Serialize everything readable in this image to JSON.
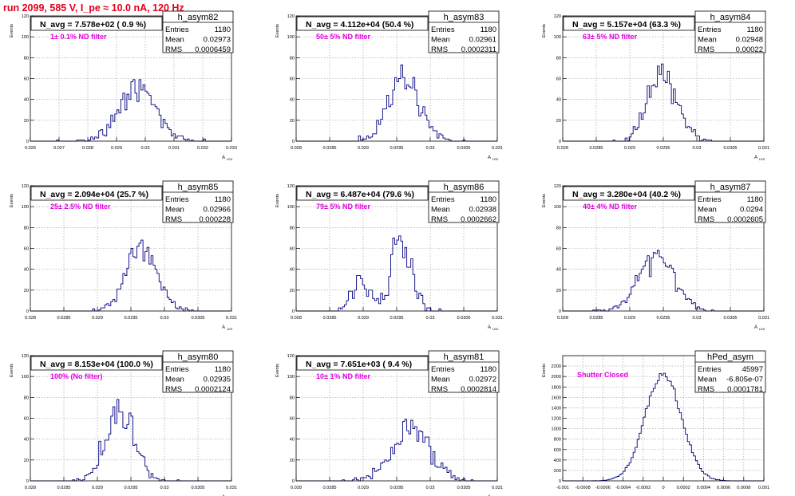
{
  "header": {
    "run_title": "run 2099,   585 V, I_pe ≈ 10.0 nA, 120 Hz"
  },
  "colors": {
    "title": "#e0001b",
    "note": "#e000e0",
    "histogram": "#000080",
    "grid": "#9a9a9a"
  },
  "chart_data": [
    {
      "type": "histogram",
      "name": "h_asym82",
      "title": "N_avg = 7.578e+02 ( 0.9 %)",
      "annotation": "1± 0.1% ND filter",
      "stats": {
        "Entries": "1180",
        "Mean": "0.02973",
        "RMS": "0.0006459"
      },
      "ylabel": "Events",
      "xlabel": "A_{LED}",
      "xlim": [
        0.026,
        0.033
      ],
      "ylim": [
        0,
        120
      ],
      "xticks": [
        "0.026",
        "0.027",
        "0.028",
        "0.029",
        "0.03",
        "0.031",
        "0.032",
        "0.033"
      ],
      "yticks": [
        "0",
        "20",
        "40",
        "60",
        "80",
        "100",
        "120"
      ],
      "fill_note": "Gaussian 1180 entries; mean 0.02973; rms 0.0006459",
      "xmin": 0.026,
      "xmax": 0.033,
      "bins": 100,
      "mean": 0.02973,
      "rms": 0.0006459,
      "entries": 1180,
      "seed": 82
    },
    {
      "type": "histogram",
      "name": "h_asym83",
      "title": "N_avg = 4.112e+04 (50.4 %)",
      "annotation": "50± 5% ND filter",
      "stats": {
        "Entries": "1180",
        "Mean": "0.02961",
        "RMS": "0.0002311"
      },
      "ylabel": "Events",
      "xlabel": "A_{LED}",
      "xlim": [
        0.028,
        0.031
      ],
      "ylim": [
        0,
        120
      ],
      "xticks": [
        "0.028",
        "0.0285",
        "0.029",
        "0.0295",
        "0.03",
        "0.0305",
        "0.031"
      ],
      "yticks": [
        "0",
        "20",
        "40",
        "60",
        "80",
        "100",
        "120"
      ],
      "xmin": 0.028,
      "xmax": 0.031,
      "bins": 100,
      "mean": 0.02961,
      "rms": 0.0002311,
      "entries": 1180,
      "seed": 83
    },
    {
      "type": "histogram",
      "name": "h_asym84",
      "title": "N_avg = 5.157e+04 (63.3 %)",
      "annotation": "63± 5% ND filter",
      "stats": {
        "Entries": "1180",
        "Mean": "0.02948",
        "RMS": "0.00022"
      },
      "ylabel": "Events",
      "xlabel": "A_{LED}",
      "xlim": [
        0.028,
        0.031
      ],
      "ylim": [
        0,
        120
      ],
      "xticks": [
        "0.028",
        "0.0285",
        "0.029",
        "0.0295",
        "0.03",
        "0.0305",
        "0.031"
      ],
      "yticks": [
        "0",
        "20",
        "40",
        "60",
        "80",
        "100",
        "120"
      ],
      "xmin": 0.028,
      "xmax": 0.031,
      "bins": 100,
      "mean": 0.02948,
      "rms": 0.00022,
      "entries": 1180,
      "seed": 84
    },
    {
      "type": "histogram",
      "name": "h_asym85",
      "title": "N_avg = 2.094e+04 (25.7 %)",
      "annotation": "25± 2.5% ND filter",
      "stats": {
        "Entries": "1180",
        "Mean": "0.02966",
        "RMS": "0.000228"
      },
      "ylabel": "Events",
      "xlabel": "A_{LED}",
      "xlim": [
        0.028,
        0.031
      ],
      "ylim": [
        0,
        120
      ],
      "xticks": [
        "0.028",
        "0.0285",
        "0.029",
        "0.0295",
        "0.03",
        "0.0305",
        "0.031"
      ],
      "yticks": [
        "0",
        "20",
        "40",
        "60",
        "80",
        "100",
        "120"
      ],
      "xmin": 0.028,
      "xmax": 0.031,
      "bins": 100,
      "mean": 0.02966,
      "rms": 0.000228,
      "entries": 1180,
      "seed": 85
    },
    {
      "type": "histogram",
      "name": "h_asym86",
      "title": "N_avg = 6.487e+04 (79.6 %)",
      "annotation": "79± 5% ND filter",
      "stats": {
        "Entries": "1180",
        "Mean": "0.02938",
        "RMS": "0.0002662"
      },
      "ylabel": "Events",
      "xlabel": "A_{LED}",
      "xlim": [
        0.028,
        0.031
      ],
      "ylim": [
        0,
        120
      ],
      "xticks": [
        "0.028",
        "0.0285",
        "0.029",
        "0.0295",
        "0.03",
        "0.0305",
        "0.031"
      ],
      "yticks": [
        "0",
        "20",
        "40",
        "60",
        "80",
        "100",
        "120"
      ],
      "xmin": 0.028,
      "xmax": 0.031,
      "bins": 100,
      "mean": 0.02938,
      "rms": 0.0002662,
      "entries": 1180,
      "seed": 86,
      "bimodal": true
    },
    {
      "type": "histogram",
      "name": "h_asym87",
      "title": "N_avg = 3.280e+04 (40.2 %)",
      "annotation": "40± 4% ND filter",
      "stats": {
        "Entries": "1180",
        "Mean": "0.0294",
        "RMS": "0.0002605"
      },
      "ylabel": "Events",
      "xlabel": "A_{LED}",
      "xlim": [
        0.028,
        0.031
      ],
      "ylim": [
        0,
        120
      ],
      "xticks": [
        "0.028",
        "0.0285",
        "0.029",
        "0.0295",
        "0.03",
        "0.0305",
        "0.031"
      ],
      "yticks": [
        "0",
        "20",
        "40",
        "60",
        "80",
        "100",
        "120"
      ],
      "xmin": 0.028,
      "xmax": 0.031,
      "bins": 100,
      "mean": 0.0294,
      "rms": 0.0002605,
      "entries": 1180,
      "seed": 87
    },
    {
      "type": "histogram",
      "name": "h_asym80",
      "title": "N_avg = 8.153e+04 (100.0 %)",
      "annotation": "100% (No filter)",
      "stats": {
        "Entries": "1180",
        "Mean": "0.02935",
        "RMS": "0.0002124"
      },
      "ylabel": "Events",
      "xlabel": "A_{LED}",
      "xlim": [
        0.028,
        0.031
      ],
      "ylim": [
        0,
        120
      ],
      "xticks": [
        "0.028",
        "0.0285",
        "0.029",
        "0.0295",
        "0.03",
        "0.0305",
        "0.031"
      ],
      "yticks": [
        "0",
        "20",
        "40",
        "60",
        "80",
        "100",
        "120"
      ],
      "xmin": 0.028,
      "xmax": 0.031,
      "bins": 100,
      "mean": 0.02935,
      "rms": 0.0002124,
      "entries": 1180,
      "seed": 80
    },
    {
      "type": "histogram",
      "name": "h_asym81",
      "title": "N_avg = 7.651e+03 ( 9.4 %)",
      "annotation": "10± 1% ND filter",
      "stats": {
        "Entries": "1180",
        "Mean": "0.02972",
        "RMS": "0.0002814"
      },
      "ylabel": "Events",
      "xlabel": "A_{LED}",
      "xlim": [
        0.028,
        0.031
      ],
      "ylim": [
        0,
        120
      ],
      "xticks": [
        "0.028",
        "0.0285",
        "0.029",
        "0.0295",
        "0.03",
        "0.0305",
        "0.031"
      ],
      "yticks": [
        "0",
        "20",
        "40",
        "60",
        "80",
        "100",
        "120"
      ],
      "xmin": 0.028,
      "xmax": 0.031,
      "bins": 100,
      "mean": 0.02972,
      "rms": 0.0002814,
      "entries": 1180,
      "seed": 81
    },
    {
      "type": "histogram",
      "name": "hPed_asym",
      "title": "",
      "annotation": "Shutter Closed",
      "stats": {
        "Entries": "45997",
        "Mean": "-6.805e-07",
        "RMS": "0.0001781"
      },
      "ylabel": "Events",
      "xlabel": "",
      "xlim": [
        -0.001,
        0.001
      ],
      "ylim": [
        0,
        2400
      ],
      "xticks": [
        "-0.001",
        "-0.0008",
        "-0.0006",
        "-0.0004",
        "-0.0002",
        "0",
        "0.0002",
        "0.0004",
        "0.0006",
        "0.0008",
        "0.001"
      ],
      "yticks": [
        "0",
        "200",
        "400",
        "600",
        "800",
        "1000",
        "1200",
        "1400",
        "1600",
        "1800",
        "2000",
        "2200"
      ],
      "xmin": -0.001,
      "xmax": 0.001,
      "bins": 100,
      "mean": -6.805e-07,
      "rms": 0.0001781,
      "entries": 45997,
      "seed": 99
    }
  ]
}
